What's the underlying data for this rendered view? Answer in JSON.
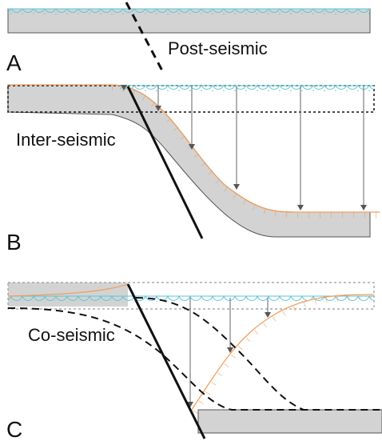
{
  "panels": [
    {
      "label": "A",
      "caption": "Post-seismic"
    },
    {
      "label": "B",
      "caption": "Inter-seismic"
    },
    {
      "label": "C",
      "caption": "Co-seismic"
    }
  ]
}
